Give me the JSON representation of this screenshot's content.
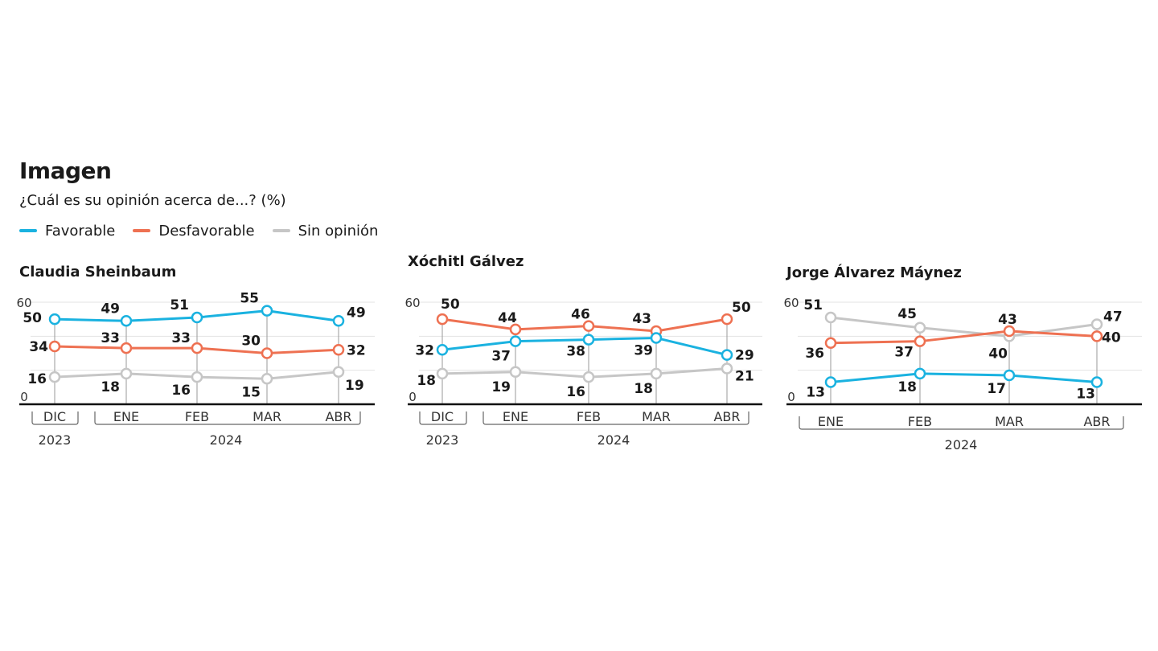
{
  "header": {
    "title": "Imagen",
    "subtitle": "¿Cuál es su opinión acerca de...? (%)"
  },
  "legend": [
    {
      "label": "Favorable",
      "color": "#1ab2e0"
    },
    {
      "label": "Desfavorable",
      "color": "#ee7152"
    },
    {
      "label": "Sin opinión",
      "color": "#c6c6c6"
    }
  ],
  "chart_data": [
    {
      "type": "line",
      "title": "Claudia Sheinbaum",
      "categories": [
        "DIC",
        "ENE",
        "FEB",
        "MAR",
        "ABR"
      ],
      "year_groups": [
        {
          "label": "2023",
          "start": 0,
          "end": 0
        },
        {
          "label": "2024",
          "start": 1,
          "end": 4
        }
      ],
      "ylim": [
        0,
        60
      ],
      "yticks": [
        0,
        60
      ],
      "series": [
        {
          "name": "Favorable",
          "color": "#1ab2e0",
          "values": [
            50,
            49,
            51,
            55,
            49
          ]
        },
        {
          "name": "Desfavorable",
          "color": "#ee7152",
          "values": [
            34,
            33,
            33,
            30,
            32
          ]
        },
        {
          "name": "Sin opinión",
          "color": "#c6c6c6",
          "values": [
            16,
            18,
            16,
            15,
            19
          ]
        }
      ]
    },
    {
      "type": "line",
      "title": "Xóchitl Gálvez",
      "categories": [
        "DIC",
        "ENE",
        "FEB",
        "MAR",
        "ABR"
      ],
      "year_groups": [
        {
          "label": "2023",
          "start": 0,
          "end": 0
        },
        {
          "label": "2024",
          "start": 1,
          "end": 4
        }
      ],
      "ylim": [
        0,
        60
      ],
      "yticks": [
        0,
        60
      ],
      "series": [
        {
          "name": "Favorable",
          "color": "#1ab2e0",
          "values": [
            32,
            37,
            38,
            39,
            29
          ]
        },
        {
          "name": "Desfavorable",
          "color": "#ee7152",
          "values": [
            50,
            44,
            46,
            43,
            50
          ]
        },
        {
          "name": "Sin opinión",
          "color": "#c6c6c6",
          "values": [
            18,
            19,
            16,
            18,
            21
          ]
        }
      ]
    },
    {
      "type": "line",
      "title": "Jorge Álvarez Máynez",
      "categories": [
        "ENE",
        "FEB",
        "MAR",
        "ABR"
      ],
      "year_groups": [
        {
          "label": "2024",
          "start": 0,
          "end": 3
        }
      ],
      "ylim": [
        0,
        60
      ],
      "yticks": [
        0,
        60
      ],
      "series": [
        {
          "name": "Favorable",
          "color": "#1ab2e0",
          "values": [
            13,
            18,
            17,
            13
          ]
        },
        {
          "name": "Desfavorable",
          "color": "#ee7152",
          "values": [
            36,
            37,
            43,
            40
          ]
        },
        {
          "name": "Sin opinión",
          "color": "#c6c6c6",
          "values": [
            51,
            45,
            40,
            47
          ]
        }
      ]
    }
  ]
}
